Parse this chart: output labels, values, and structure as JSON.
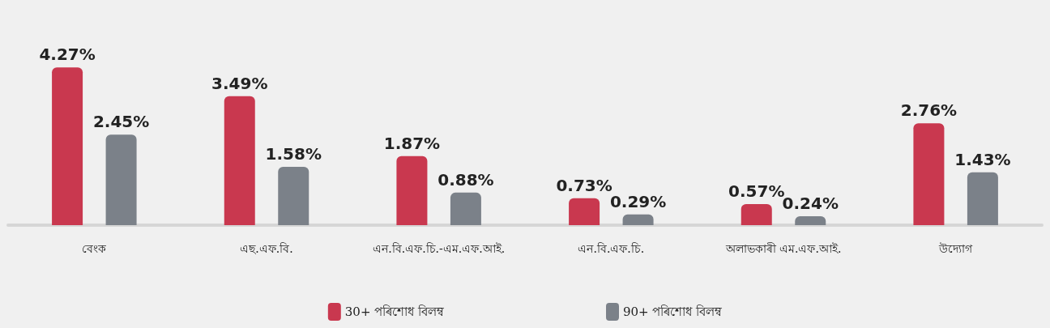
{
  "chart_data": {
    "type": "bar",
    "categories": [
      "বেংক",
      "এছ.এফ.বি.",
      "এন.বি.এফ.চি.-এম.এফ.আই.",
      "এন.বি.এফ.চি.",
      "অলাভকাৰী এম.এফ.আই.",
      "উদ্যোগ"
    ],
    "series": [
      {
        "name": "30+ পৰিশোধ বিলম্ব",
        "color": "#c9384f",
        "values": [
          4.27,
          3.49,
          1.87,
          0.73,
          0.57,
          2.76
        ],
        "value_labels": [
          "4.27%",
          "3.49%",
          "1.87%",
          "0.73%",
          "0.57%",
          "2.76%"
        ]
      },
      {
        "name": "90+ পৰিশোধ বিলম্ব",
        "color": "#7b8189",
        "values": [
          2.45,
          1.58,
          0.88,
          0.29,
          0.24,
          1.43
        ],
        "value_labels": [
          "2.45%",
          "1.58%",
          "0.88%",
          "0.29%",
          "0.24%",
          "1.43%"
        ]
      }
    ],
    "grid": false,
    "legend": "bottom"
  }
}
